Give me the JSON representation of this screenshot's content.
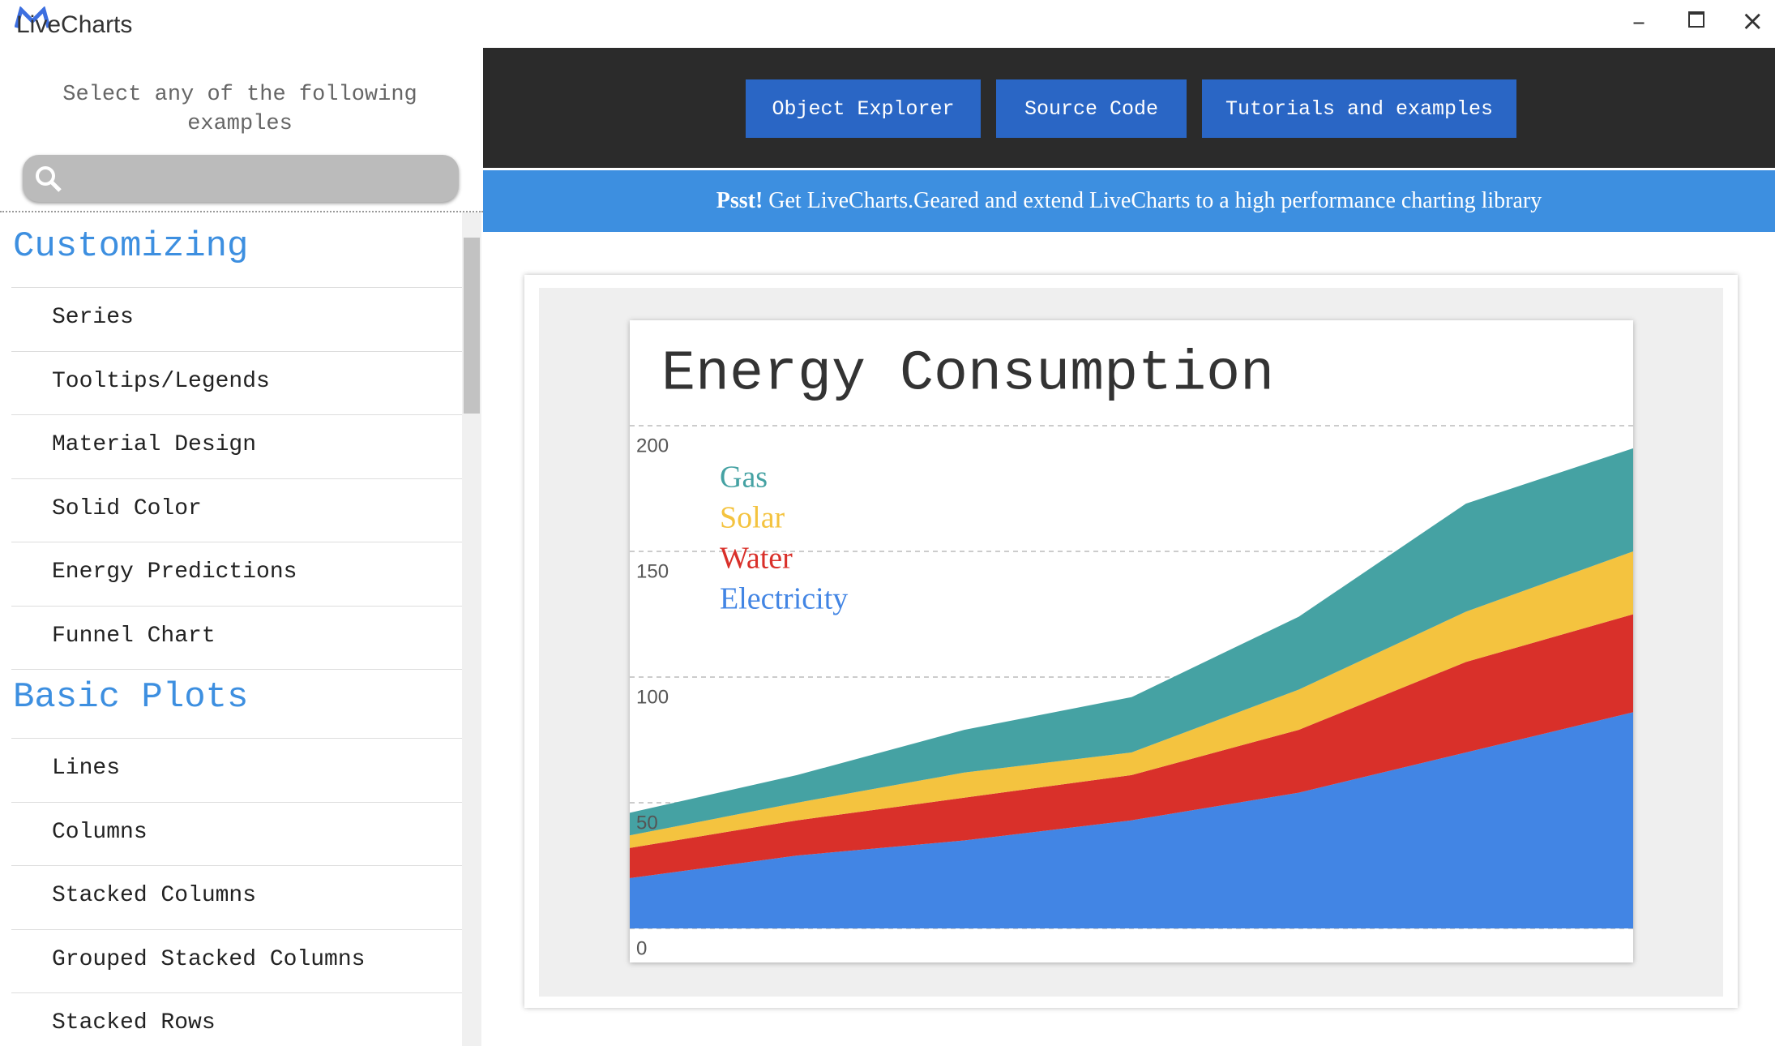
{
  "app": {
    "title": "LiveCharts"
  },
  "sidebar": {
    "prompt": "Select any of the following examples",
    "sections": [
      {
        "heading": "Customizing",
        "items": [
          "Series",
          "Tooltips/Legends",
          "Material Design",
          "Solid Color",
          "Energy Predictions",
          "Funnel Chart"
        ]
      },
      {
        "heading": "Basic Plots",
        "items": [
          "Lines",
          "Columns",
          "Stacked Columns",
          "Grouped Stacked Columns",
          "Stacked Rows"
        ]
      }
    ]
  },
  "toolbar": {
    "buttons": [
      "Object Explorer",
      "Source Code",
      "Tutorials and examples"
    ]
  },
  "banner": {
    "emphasis": "Psst!",
    "text": "Get LiveCharts.Geared and extend LiveCharts to a high performance charting library"
  },
  "chart_data": {
    "type": "stacked_area",
    "title": "Energy Consumption",
    "categories": [
      null,
      null,
      null,
      null,
      null,
      null,
      null
    ],
    "series": [
      {
        "name": "Gas",
        "color": "#45a2a3",
        "values": [
          9,
          11,
          17,
          22,
          29,
          43,
          41
        ]
      },
      {
        "name": "Solar",
        "color": "#f4c33f",
        "values": [
          5,
          7,
          10,
          9,
          16,
          20,
          25
        ]
      },
      {
        "name": "Water",
        "color": "#d9302a",
        "values": [
          12,
          14,
          17,
          18,
          25,
          36,
          39
        ]
      },
      {
        "name": "Electricity",
        "color": "#4285e4",
        "values": [
          20,
          29,
          35,
          43,
          54,
          70,
          86
        ]
      }
    ],
    "ylim": [
      0,
      200
    ],
    "yticks": [
      0,
      50,
      100,
      150,
      200
    ],
    "grid": true,
    "legend": "top-left"
  }
}
